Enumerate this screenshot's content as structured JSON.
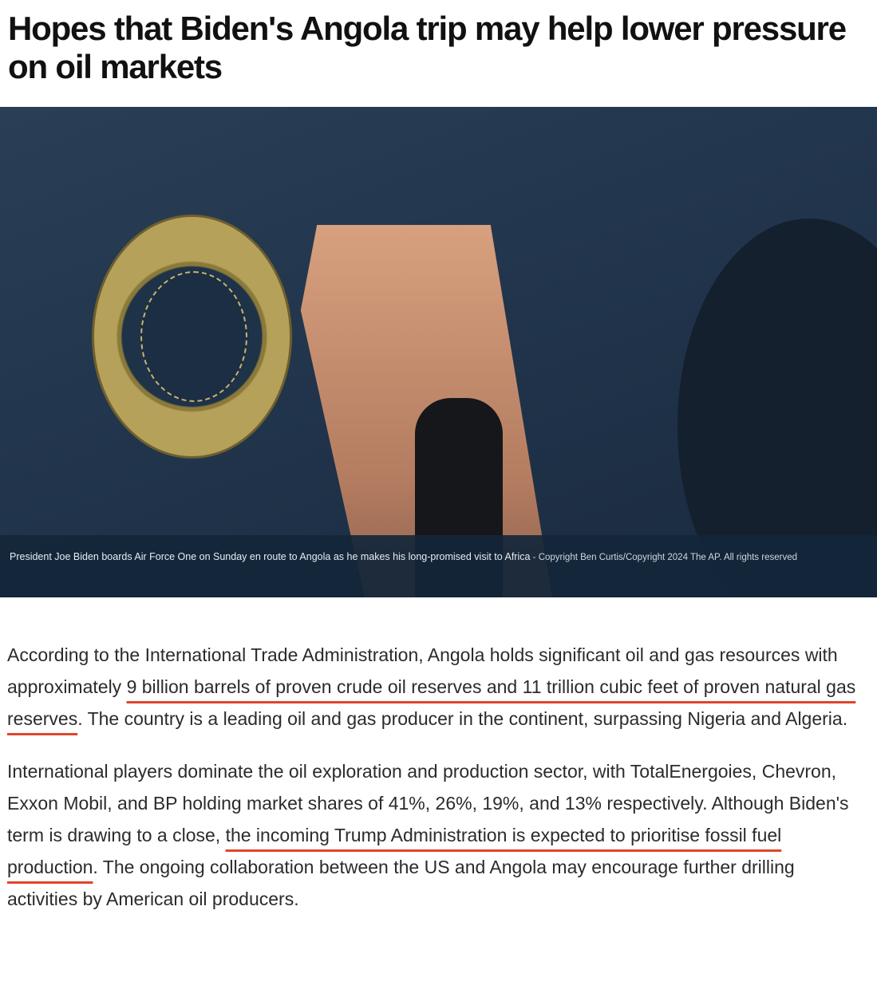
{
  "article": {
    "title": "Hopes that Biden's Angola trip may help lower pressure on oil markets",
    "image": {
      "description_icon": "photo-biden-boarding-air-force-one",
      "caption": "President Joe Biden boards Air Force One on Sunday en route to Angola as he makes his long-promised visit to Africa",
      "separator": " - ",
      "credit": "Copyright Ben Curtis/Copyright 2024 The AP. All rights reserved"
    },
    "paragraphs": [
      {
        "before": "According to the International Trade Administration, Angola holds significant oil and gas resources with approximately ",
        "highlight": "9 billion barrels of proven crude oil reserves and 11 trillion cubic feet of proven natural gas reserves",
        "after": ". The country is a leading oil and gas producer in the continent, surpassing Nigeria and Algeria."
      },
      {
        "before": "International players dominate the oil exploration and production sector, with TotalEnergoies, Chevron, Exxon Mobil, and BP holding market shares of 41%, 26%, 19%, and 13% respectively. Although Biden's term is drawing to a close, ",
        "highlight": "the incoming Trump Administration is expected to prioritise fossil fuel production",
        "after": ". The ongoing collaboration between the US and Angola may encourage further drilling activities by American oil producers."
      }
    ],
    "highlight_color": "#e0452b"
  }
}
